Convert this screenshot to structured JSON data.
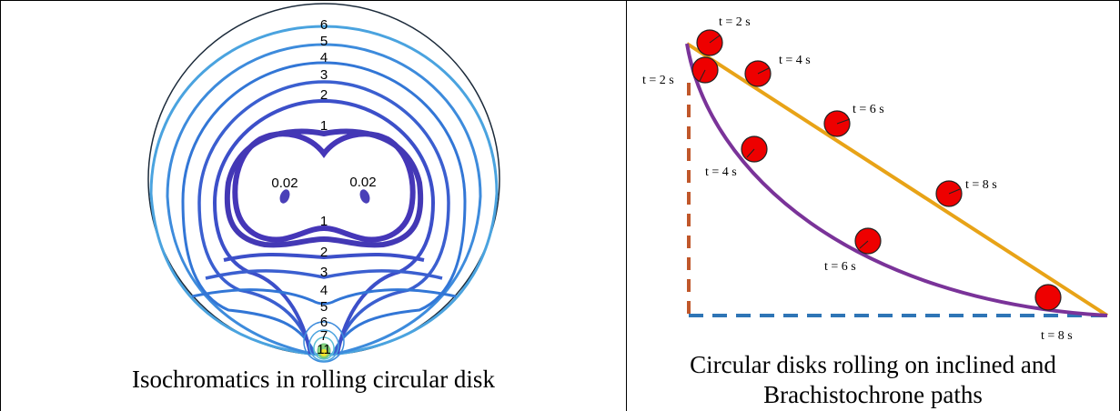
{
  "left_panel": {
    "caption": "Isochromatics in rolling circular disk",
    "fringe_labels": {
      "upper_6": "6",
      "upper_5": "5",
      "upper_4": "4",
      "upper_3": "3",
      "upper_2": "2",
      "upper_1": "1",
      "eye_left": "0.02",
      "eye_right": "0.02",
      "lower_1": "1",
      "lower_2": "2",
      "lower_3": "3",
      "lower_4": "4",
      "lower_5": "5",
      "lower_6": "6",
      "lower_7": "7",
      "lower_11": "11"
    }
  },
  "right_panel": {
    "caption_line1": "Circular disks rolling on inclined and",
    "caption_line2": "Brachistochrone paths",
    "inclined_labels": {
      "t2": "t = 2 s",
      "t4": "t = 4 s",
      "t6": "t = 6 s",
      "t8": "t = 8 s"
    },
    "curve_labels": {
      "t2": "t = 2 s",
      "t4": "t = 4 s",
      "t6": "t = 6 s",
      "t8": "t = 8 s"
    },
    "colors": {
      "inclined_path": "#e8a317",
      "brachistochrone": "#7a3399",
      "disk": "#ee0000",
      "vertical_dash": "#c0572a",
      "horizontal_dash": "#2e75b6"
    }
  }
}
